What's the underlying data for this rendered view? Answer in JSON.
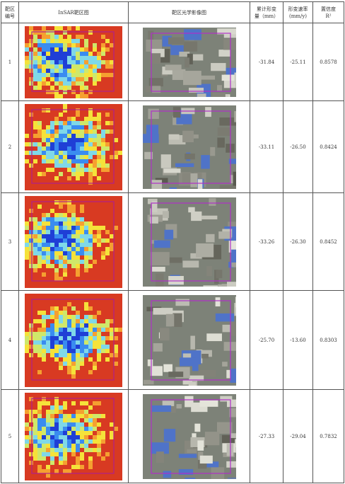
{
  "table": {
    "header": [
      [
        "靶区",
        "编号"
      ],
      [
        "InSAR靶区图"
      ],
      [
        "靶区光学影像图"
      ],
      [
        "累计形变",
        "量（mm）"
      ],
      [
        "形变速率",
        "(mm/y)"
      ],
      [
        "置信度",
        "R²"
      ]
    ],
    "rows": [
      [
        "1",
        "-31.84",
        "-25.11",
        "0.8578"
      ],
      [
        "2",
        "-33.11",
        "-26.50",
        "0.8424"
      ],
      [
        "3",
        "-33.26",
        "-26.30",
        "0.8452"
      ],
      [
        "4",
        "-25.70",
        "-13.60",
        "0.8303"
      ],
      [
        "5",
        "-27.33",
        "-29.04",
        "0.7832"
      ]
    ]
  }
}
